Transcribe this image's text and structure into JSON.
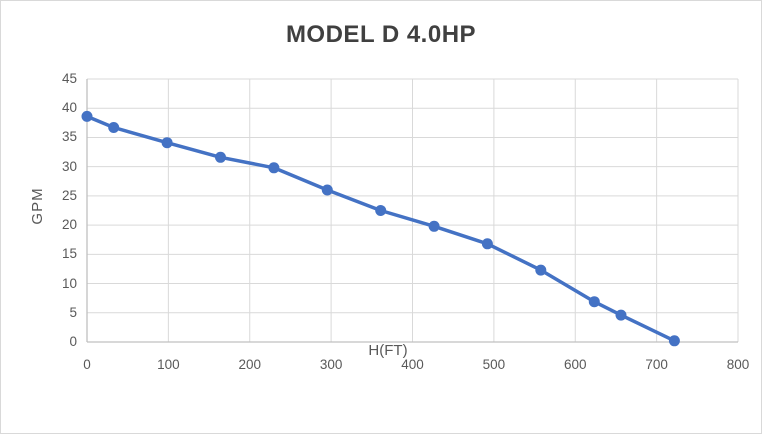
{
  "chart_data": {
    "type": "line",
    "title": "MODEL D 4.0HP",
    "xlabel": "H(FT)",
    "ylabel": "GPM",
    "series": [
      {
        "x": [
          0,
          32.8,
          98.4,
          164.0,
          229.7,
          295.3,
          360.9,
          426.5,
          492.1,
          557.7,
          623.4,
          656.2,
          721.8
        ],
        "y": [
          38.6,
          36.7,
          34.1,
          31.6,
          29.8,
          26.0,
          22.5,
          19.8,
          16.8,
          12.3,
          6.9,
          4.6,
          0.2
        ],
        "color": "#4472C4",
        "marker": "circle"
      }
    ],
    "xlim": [
      0,
      800
    ],
    "ylim": [
      0,
      45
    ],
    "xticks": [
      0,
      100,
      200,
      300,
      400,
      500,
      600,
      700,
      800
    ],
    "yticks": [
      0,
      5,
      10,
      15,
      20,
      25,
      30,
      35,
      40,
      45
    ],
    "grid": true,
    "legend": false
  },
  "style": {
    "series_color": "#4472C4",
    "gridline_color": "#D9D9D9",
    "axis_line_color": "#C0C0C0",
    "tick_text_color": "#595959",
    "title_color": "#404040",
    "background": "#FFFFFF",
    "border_color": "#D9D9D9"
  }
}
